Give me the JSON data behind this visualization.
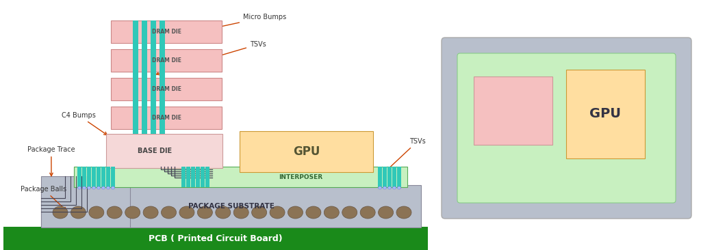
{
  "bg_color": "#ffffff",
  "pcb_color": "#1a8a1a",
  "pcb_label": "PCB ( Printed Circuit Board)",
  "pcb_label_color": "#ffffff",
  "substrate_color": "#b8bfcc",
  "substrate_label": "PACKAGE SUBSTRATE",
  "interposer_color": "#c8f0c0",
  "interposer_label": "INTERPOSER",
  "base_die_color": "#f5d8d8",
  "base_die_label": "BASE DIE",
  "gpu_color": "#ffdea0",
  "gpu_label": "GPU",
  "dram_color": "#f5c0c0",
  "dram_label": "DRAM DIE",
  "tsv_color": "#30c8b8",
  "ball_color": "#8b7355",
  "c4_bump_color": "#30c8b8",
  "arrow_color": "#cc4400",
  "annotation_color": "#333333",
  "trace_color": "#444455",
  "rp_outer_color": "#b8bfcc",
  "rp_inner_color": "#c8f0c0",
  "rp_hbm_color": "#f5c0c0",
  "rp_gpu_color": "#ffdea0"
}
